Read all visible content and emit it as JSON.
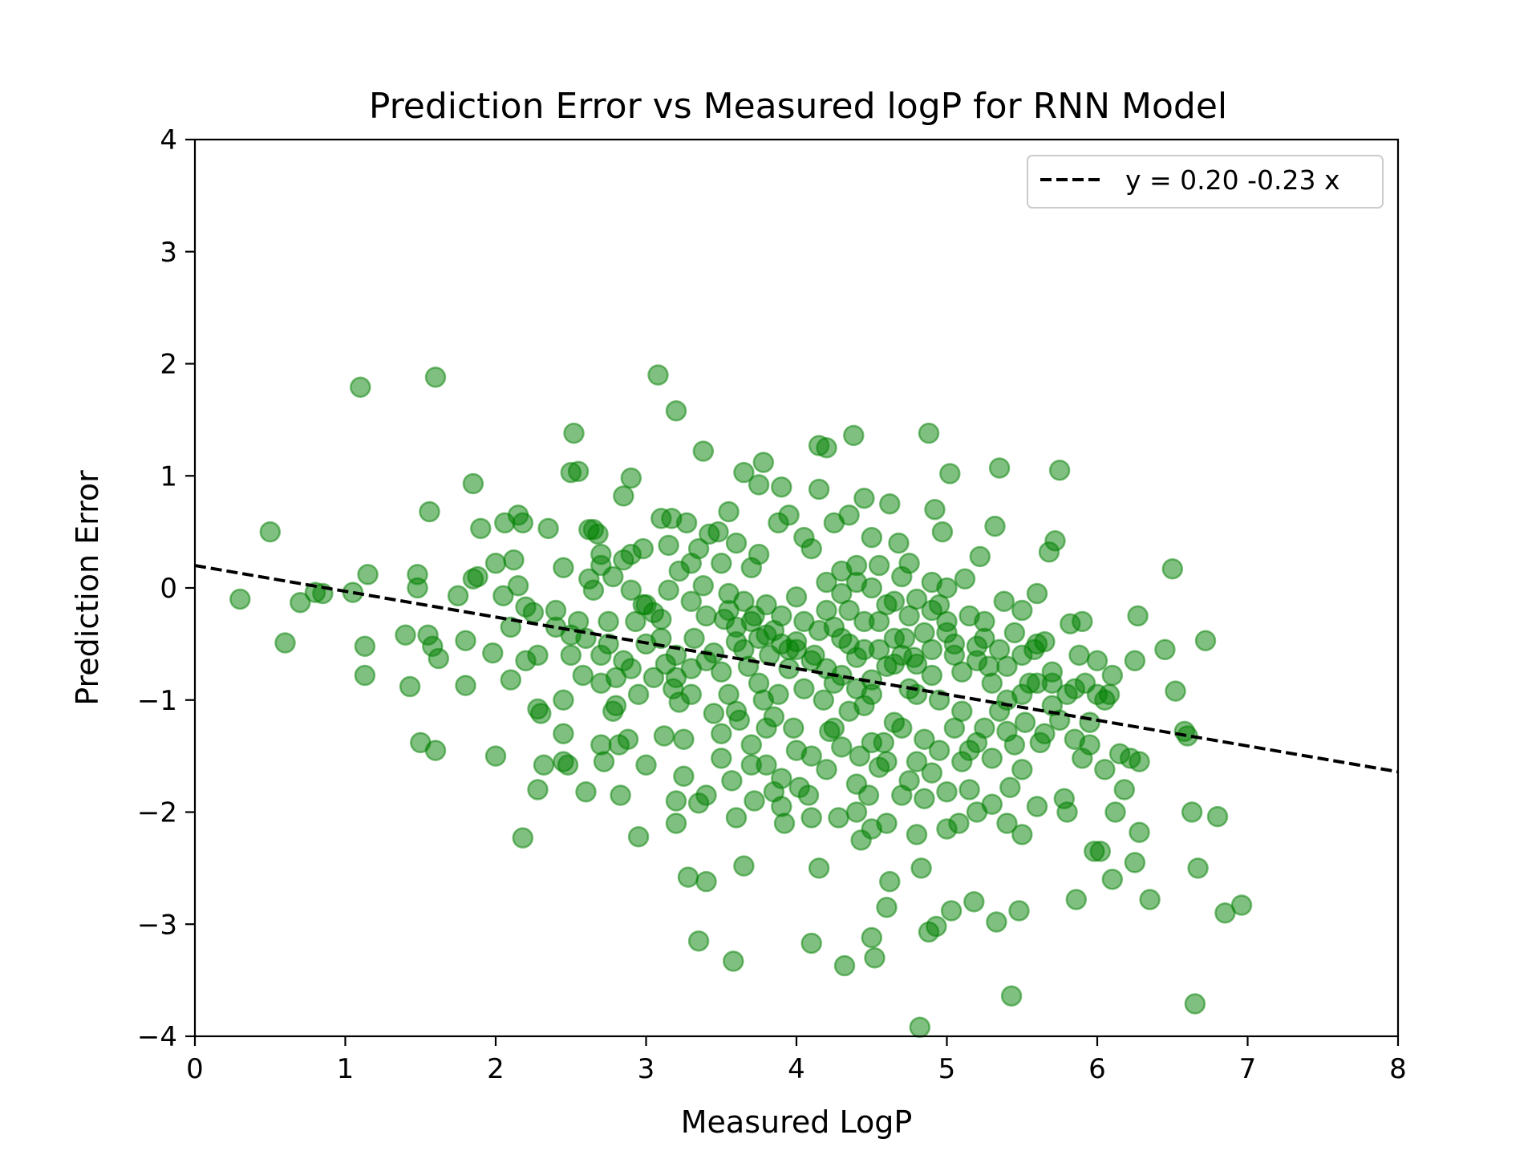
{
  "chart_data": {
    "type": "scatter",
    "title": "Prediction Error vs Measured logP for RNN Model",
    "xlabel": "Measured LogP",
    "ylabel": "Prediction Error",
    "xlim": [
      0,
      8
    ],
    "ylim": [
      -4,
      4
    ],
    "x_ticks": [
      "0",
      "1",
      "2",
      "3",
      "4",
      "5",
      "6",
      "7",
      "8"
    ],
    "y_ticks": [
      "−4",
      "−3",
      "−2",
      "−1",
      "0",
      "1",
      "2",
      "3",
      "4"
    ],
    "grid": false,
    "legend_position": "top-right",
    "point_color": "#008000",
    "line_color": "#000000",
    "fit_line": {
      "label": "y = 0.20 -0.23 x",
      "intercept": 0.2,
      "slope": -0.23,
      "style": "dashed"
    },
    "points": [
      [
        0.3,
        -0.1
      ],
      [
        0.5,
        0.5
      ],
      [
        0.6,
        -0.49
      ],
      [
        0.7,
        -0.13
      ],
      [
        0.8,
        -0.04
      ],
      [
        0.85,
        -0.05
      ],
      [
        1.05,
        -0.04
      ],
      [
        1.1,
        1.79
      ],
      [
        1.13,
        -0.52
      ],
      [
        1.15,
        0.12
      ],
      [
        1.13,
        -0.78
      ],
      [
        1.4,
        -0.42
      ],
      [
        1.43,
        -0.88
      ],
      [
        1.48,
        0.12
      ],
      [
        1.48,
        0.0
      ],
      [
        1.5,
        -1.38
      ],
      [
        1.55,
        -0.42
      ],
      [
        1.56,
        0.68
      ],
      [
        1.58,
        -0.52
      ],
      [
        1.6,
        1.88
      ],
      [
        1.6,
        -1.45
      ],
      [
        1.62,
        -0.63
      ],
      [
        1.75,
        -0.07
      ],
      [
        1.8,
        -0.47
      ],
      [
        1.8,
        -0.87
      ],
      [
        1.85,
        0.93
      ],
      [
        1.85,
        0.08
      ],
      [
        1.9,
        0.53
      ],
      [
        1.88,
        0.1
      ],
      [
        1.98,
        -0.58
      ],
      [
        2.0,
        0.22
      ],
      [
        2.0,
        -1.5
      ],
      [
        2.05,
        -0.07
      ],
      [
        2.06,
        0.58
      ],
      [
        2.1,
        -0.35
      ],
      [
        2.1,
        -0.82
      ],
      [
        2.12,
        0.25
      ],
      [
        2.15,
        0.65
      ],
      [
        2.15,
        0.02
      ],
      [
        2.18,
        0.58
      ],
      [
        2.2,
        -0.17
      ],
      [
        2.18,
        -2.23
      ],
      [
        2.2,
        -0.65
      ],
      [
        2.25,
        -0.22
      ],
      [
        2.28,
        -0.6
      ],
      [
        2.28,
        -1.08
      ],
      [
        2.3,
        -1.12
      ],
      [
        2.28,
        -1.8
      ],
      [
        2.32,
        -1.58
      ],
      [
        2.35,
        0.53
      ],
      [
        2.4,
        -0.2
      ],
      [
        2.45,
        0.18
      ],
      [
        2.45,
        -1.0
      ],
      [
        2.45,
        -1.3
      ],
      [
        2.45,
        -1.55
      ],
      [
        2.48,
        -1.58
      ],
      [
        2.5,
        1.03
      ],
      [
        2.52,
        1.38
      ],
      [
        2.5,
        -0.42
      ],
      [
        2.55,
        1.04
      ],
      [
        2.55,
        -0.3
      ],
      [
        2.58,
        -0.78
      ],
      [
        2.6,
        -1.82
      ],
      [
        2.62,
        0.52
      ],
      [
        2.62,
        0.08
      ],
      [
        2.65,
        0.52
      ],
      [
        2.65,
        -0.02
      ],
      [
        2.68,
        0.48
      ],
      [
        2.7,
        0.3
      ],
      [
        2.7,
        0.2
      ],
      [
        2.7,
        -0.6
      ],
      [
        2.7,
        -1.4
      ],
      [
        2.72,
        -1.55
      ],
      [
        2.75,
        -0.3
      ],
      [
        2.75,
        -0.5
      ],
      [
        2.78,
        0.1
      ],
      [
        2.78,
        -1.1
      ],
      [
        2.8,
        -0.8
      ],
      [
        2.82,
        -1.4
      ],
      [
        2.83,
        -1.85
      ],
      [
        2.85,
        0.82
      ],
      [
        2.85,
        0.25
      ],
      [
        2.85,
        -0.65
      ],
      [
        2.88,
        -1.35
      ],
      [
        2.9,
        0.98
      ],
      [
        2.9,
        0.3
      ],
      [
        2.9,
        -0.02
      ],
      [
        2.93,
        -0.3
      ],
      [
        2.95,
        -0.95
      ],
      [
        2.95,
        -2.22
      ],
      [
        2.98,
        0.35
      ],
      [
        2.98,
        -0.15
      ],
      [
        3.0,
        -0.5
      ],
      [
        3.0,
        -1.58
      ],
      [
        3.05,
        -0.22
      ],
      [
        3.05,
        -0.8
      ],
      [
        3.08,
        1.9
      ],
      [
        3.1,
        0.62
      ],
      [
        3.1,
        -0.28
      ],
      [
        3.12,
        -1.32
      ],
      [
        3.13,
        -0.68
      ],
      [
        3.15,
        0.38
      ],
      [
        3.15,
        -0.02
      ],
      [
        3.17,
        0.62
      ],
      [
        3.18,
        -0.9
      ],
      [
        3.2,
        1.58
      ],
      [
        3.2,
        -0.6
      ],
      [
        3.2,
        -1.9
      ],
      [
        3.2,
        -2.1
      ],
      [
        3.22,
        0.15
      ],
      [
        3.22,
        -1.02
      ],
      [
        3.25,
        -1.35
      ],
      [
        3.25,
        -1.68
      ],
      [
        3.27,
        0.58
      ],
      [
        3.28,
        -2.58
      ],
      [
        3.3,
        0.22
      ],
      [
        3.3,
        -0.12
      ],
      [
        3.3,
        -0.72
      ],
      [
        3.32,
        -0.45
      ],
      [
        3.35,
        0.35
      ],
      [
        3.35,
        -1.92
      ],
      [
        3.35,
        -3.15
      ],
      [
        3.38,
        1.22
      ],
      [
        3.38,
        0.02
      ],
      [
        3.4,
        -0.25
      ],
      [
        3.4,
        -1.85
      ],
      [
        3.4,
        -2.62
      ],
      [
        3.42,
        0.48
      ],
      [
        3.45,
        -0.58
      ],
      [
        3.45,
        -1.12
      ],
      [
        3.48,
        0.5
      ],
      [
        3.5,
        0.22
      ],
      [
        3.5,
        -0.75
      ],
      [
        3.5,
        -1.52
      ],
      [
        3.52,
        -0.28
      ],
      [
        3.55,
        0.68
      ],
      [
        3.55,
        -0.05
      ],
      [
        3.55,
        -0.95
      ],
      [
        3.57,
        -1.72
      ],
      [
        3.58,
        -3.33
      ],
      [
        3.6,
        0.4
      ],
      [
        3.6,
        -0.48
      ],
      [
        3.62,
        -1.18
      ],
      [
        3.65,
        1.03
      ],
      [
        3.65,
        -0.12
      ],
      [
        3.65,
        -2.48
      ],
      [
        3.68,
        -0.7
      ],
      [
        3.7,
        0.18
      ],
      [
        3.7,
        -1.58
      ],
      [
        3.72,
        -0.25
      ],
      [
        3.72,
        -1.9
      ],
      [
        3.75,
        0.92
      ],
      [
        3.75,
        0.3
      ],
      [
        3.75,
        -0.45
      ],
      [
        3.78,
        1.12
      ],
      [
        3.78,
        -1.0
      ],
      [
        3.8,
        -0.15
      ],
      [
        3.8,
        -1.58
      ],
      [
        3.82,
        -0.6
      ],
      [
        3.85,
        -0.38
      ],
      [
        3.85,
        -1.82
      ],
      [
        3.88,
        0.58
      ],
      [
        3.88,
        -0.95
      ],
      [
        3.9,
        0.9
      ],
      [
        3.9,
        -0.25
      ],
      [
        3.92,
        -2.1
      ],
      [
        3.95,
        0.65
      ],
      [
        3.95,
        -0.72
      ],
      [
        3.98,
        -1.25
      ],
      [
        4.0,
        -0.08
      ],
      [
        4.0,
        -0.55
      ],
      [
        4.02,
        -1.78
      ],
      [
        4.05,
        0.45
      ],
      [
        4.05,
        -0.3
      ],
      [
        4.08,
        -1.85
      ],
      [
        4.1,
        -3.17
      ],
      [
        4.1,
        0.35
      ],
      [
        4.12,
        -0.6
      ],
      [
        4.15,
        1.27
      ],
      [
        4.15,
        -2.5
      ],
      [
        4.15,
        0.88
      ],
      [
        4.18,
        -1.0
      ],
      [
        4.2,
        1.25
      ],
      [
        4.2,
        -0.2
      ],
      [
        4.22,
        -1.28
      ],
      [
        4.25,
        0.58
      ],
      [
        4.25,
        -0.85
      ],
      [
        4.28,
        -2.05
      ],
      [
        4.3,
        0.15
      ],
      [
        4.3,
        -0.45
      ],
      [
        4.32,
        -3.37
      ],
      [
        4.35,
        0.65
      ],
      [
        4.35,
        -1.1
      ],
      [
        4.38,
        1.36
      ],
      [
        4.4,
        0.05
      ],
      [
        4.4,
        -0.62
      ],
      [
        4.42,
        -1.5
      ],
      [
        4.43,
        -2.25
      ],
      [
        4.45,
        0.8
      ],
      [
        4.45,
        -0.3
      ],
      [
        4.48,
        -1.85
      ],
      [
        4.5,
        0.45
      ],
      [
        4.5,
        -0.95
      ],
      [
        4.5,
        -3.12
      ],
      [
        4.52,
        -3.3
      ],
      [
        4.55,
        0.2
      ],
      [
        4.55,
        -0.55
      ],
      [
        4.58,
        -1.38
      ],
      [
        4.6,
        -2.85
      ],
      [
        4.62,
        0.75
      ],
      [
        4.62,
        -2.62
      ],
      [
        4.65,
        -0.12
      ],
      [
        4.65,
        -0.68
      ],
      [
        4.68,
        0.4
      ],
      [
        4.7,
        -1.25
      ],
      [
        4.72,
        -0.45
      ],
      [
        4.75,
        0.22
      ],
      [
        4.75,
        -1.72
      ],
      [
        4.78,
        -0.62
      ],
      [
        4.8,
        -0.95
      ],
      [
        4.82,
        -3.92
      ],
      [
        4.83,
        -2.5
      ],
      [
        4.85,
        -1.88
      ],
      [
        4.88,
        1.38
      ],
      [
        4.88,
        -3.07
      ],
      [
        4.9,
        0.05
      ],
      [
        4.9,
        -0.78
      ],
      [
        4.92,
        0.7
      ],
      [
        4.93,
        -3.02
      ],
      [
        4.95,
        -1.45
      ],
      [
        4.97,
        0.5
      ],
      [
        5.0,
        -2.15
      ],
      [
        5.0,
        -0.3
      ],
      [
        5.02,
        1.02
      ],
      [
        5.03,
        -2.88
      ],
      [
        5.05,
        -0.6
      ],
      [
        5.08,
        -2.1
      ],
      [
        5.1,
        -1.1
      ],
      [
        5.12,
        0.08
      ],
      [
        5.15,
        -1.8
      ],
      [
        5.18,
        -2.8
      ],
      [
        5.2,
        -0.52
      ],
      [
        5.22,
        0.28
      ],
      [
        5.25,
        -1.25
      ],
      [
        5.28,
        -0.7
      ],
      [
        5.3,
        -1.93
      ],
      [
        5.32,
        0.55
      ],
      [
        5.33,
        -2.98
      ],
      [
        5.35,
        1.07
      ],
      [
        5.38,
        -0.12
      ],
      [
        5.4,
        -1.0
      ],
      [
        5.42,
        -1.78
      ],
      [
        5.43,
        -3.64
      ],
      [
        5.45,
        -0.4
      ],
      [
        5.48,
        -2.88
      ],
      [
        5.5,
        -0.6
      ],
      [
        5.5,
        -2.2
      ],
      [
        5.52,
        -1.2
      ],
      [
        5.55,
        -0.85
      ],
      [
        5.58,
        -0.55
      ],
      [
        5.6,
        -0.05
      ],
      [
        5.62,
        -1.38
      ],
      [
        5.65,
        -0.48
      ],
      [
        5.68,
        0.32
      ],
      [
        5.7,
        -0.85
      ],
      [
        5.72,
        0.42
      ],
      [
        5.75,
        -1.18
      ],
      [
        5.75,
        1.05
      ],
      [
        5.78,
        -1.88
      ],
      [
        5.8,
        -2.0
      ],
      [
        5.82,
        -0.32
      ],
      [
        5.85,
        -1.35
      ],
      [
        5.86,
        -2.78
      ],
      [
        5.88,
        -0.6
      ],
      [
        5.9,
        -1.52
      ],
      [
        5.92,
        -0.85
      ],
      [
        5.95,
        -1.2
      ],
      [
        5.98,
        -2.35
      ],
      [
        6.0,
        -0.65
      ],
      [
        6.02,
        -2.35
      ],
      [
        6.05,
        -1.62
      ],
      [
        6.08,
        -0.95
      ],
      [
        6.1,
        -2.6
      ],
      [
        6.12,
        -2.0
      ],
      [
        6.15,
        -1.48
      ],
      [
        6.18,
        -1.8
      ],
      [
        6.22,
        -1.52
      ],
      [
        6.25,
        -0.65
      ],
      [
        6.25,
        -2.45
      ],
      [
        6.27,
        -0.25
      ],
      [
        6.28,
        -1.55
      ],
      [
        6.28,
        -2.18
      ],
      [
        6.35,
        -2.78
      ],
      [
        6.45,
        -0.55
      ],
      [
        6.5,
        0.17
      ],
      [
        6.52,
        -0.92
      ],
      [
        6.58,
        -1.28
      ],
      [
        6.6,
        -1.32
      ],
      [
        6.63,
        -2.0
      ],
      [
        6.65,
        -3.71
      ],
      [
        6.67,
        -2.5
      ],
      [
        6.72,
        -0.47
      ],
      [
        6.8,
        -2.04
      ],
      [
        6.85,
        -2.9
      ],
      [
        6.96,
        -2.83
      ],
      [
        3.6,
        -0.35
      ],
      [
        3.7,
        -0.3
      ],
      [
        3.8,
        -0.42
      ],
      [
        3.9,
        -0.5
      ],
      [
        4.0,
        -0.48
      ],
      [
        4.1,
        -0.65
      ],
      [
        4.2,
        -0.72
      ],
      [
        4.3,
        -0.78
      ],
      [
        4.4,
        -0.9
      ],
      [
        4.5,
        -0.82
      ],
      [
        4.6,
        -0.7
      ],
      [
        4.7,
        -0.6
      ],
      [
        4.8,
        -0.68
      ],
      [
        4.9,
        -0.55
      ],
      [
        5.0,
        -0.4
      ],
      [
        5.1,
        -0.75
      ],
      [
        5.2,
        -0.65
      ],
      [
        5.3,
        -0.85
      ],
      [
        5.4,
        -0.7
      ],
      [
        5.5,
        -0.95
      ],
      [
        5.6,
        -0.5
      ],
      [
        5.7,
        -0.75
      ],
      [
        3.55,
        -0.2
      ],
      [
        3.65,
        -0.55
      ],
      [
        3.75,
        -0.85
      ],
      [
        3.85,
        -1.15
      ],
      [
        3.95,
        -0.55
      ],
      [
        4.05,
        -0.9
      ],
      [
        4.15,
        -0.38
      ],
      [
        4.25,
        -1.25
      ],
      [
        4.35,
        -0.2
      ],
      [
        4.45,
        -1.05
      ],
      [
        4.55,
        -1.6
      ],
      [
        4.65,
        -1.2
      ],
      [
        4.75,
        -0.9
      ],
      [
        4.85,
        -1.35
      ],
      [
        4.95,
        -1.0
      ],
      [
        5.05,
        -1.25
      ],
      [
        5.15,
        -1.45
      ],
      [
        5.25,
        -0.45
      ],
      [
        5.35,
        -1.1
      ],
      [
        5.45,
        -1.4
      ],
      [
        3.5,
        -1.3
      ],
      [
        3.6,
        -1.1
      ],
      [
        3.7,
        -1.4
      ],
      [
        3.8,
        -1.25
      ],
      [
        3.9,
        -1.7
      ],
      [
        4.0,
        -1.45
      ],
      [
        4.1,
        -1.5
      ],
      [
        4.2,
        -1.62
      ],
      [
        4.3,
        -1.42
      ],
      [
        4.4,
        -1.75
      ],
      [
        4.5,
        -1.38
      ],
      [
        4.6,
        -1.55
      ],
      [
        4.7,
        -1.85
      ],
      [
        4.8,
        -1.55
      ],
      [
        4.9,
        -1.65
      ],
      [
        5.0,
        -1.82
      ],
      [
        5.1,
        -1.55
      ],
      [
        5.2,
        -1.38
      ],
      [
        5.3,
        -1.52
      ],
      [
        5.4,
        -1.28
      ],
      [
        5.5,
        -1.62
      ],
      [
        4.2,
        0.05
      ],
      [
        4.3,
        -0.05
      ],
      [
        4.4,
        0.2
      ],
      [
        4.5,
        0.0
      ],
      [
        4.6,
        -0.15
      ],
      [
        4.7,
        0.1
      ],
      [
        4.8,
        -0.1
      ],
      [
        4.9,
        -0.2
      ],
      [
        5.0,
        0.0
      ],
      [
        4.25,
        -0.35
      ],
      [
        4.35,
        -0.5
      ],
      [
        4.45,
        -0.55
      ],
      [
        4.55,
        -0.3
      ],
      [
        4.65,
        -0.45
      ],
      [
        4.75,
        -0.25
      ],
      [
        4.85,
        -0.4
      ],
      [
        4.95,
        -0.15
      ],
      [
        5.05,
        -0.5
      ],
      [
        5.15,
        -0.25
      ],
      [
        5.25,
        -0.3
      ],
      [
        5.35,
        -0.55
      ],
      [
        3.4,
        -0.65
      ],
      [
        3.3,
        -0.95
      ],
      [
        3.2,
        -0.8
      ],
      [
        3.1,
        -0.45
      ],
      [
        3.0,
        -0.15
      ],
      [
        2.9,
        -0.72
      ],
      [
        2.8,
        -1.05
      ],
      [
        2.7,
        -0.85
      ],
      [
        2.6,
        -0.45
      ],
      [
        2.5,
        -0.6
      ],
      [
        2.4,
        -0.35
      ],
      [
        5.5,
        -0.2
      ],
      [
        5.6,
        -0.85
      ],
      [
        5.7,
        -1.05
      ],
      [
        5.8,
        -0.95
      ],
      [
        5.9,
        -0.3
      ],
      [
        6.0,
        -0.95
      ],
      [
        6.1,
        -0.78
      ],
      [
        5.85,
        -0.9
      ],
      [
        5.95,
        -1.4
      ],
      [
        6.05,
        -1.0
      ],
      [
        5.65,
        -1.3
      ],
      [
        4.4,
        -2.0
      ],
      [
        4.6,
        -2.1
      ],
      [
        4.8,
        -2.2
      ],
      [
        4.5,
        -2.15
      ],
      [
        3.6,
        -2.05
      ],
      [
        3.9,
        -1.95
      ],
      [
        4.1,
        -2.05
      ],
      [
        5.2,
        -2.0
      ],
      [
        5.4,
        -2.1
      ],
      [
        5.6,
        -1.95
      ]
    ]
  }
}
